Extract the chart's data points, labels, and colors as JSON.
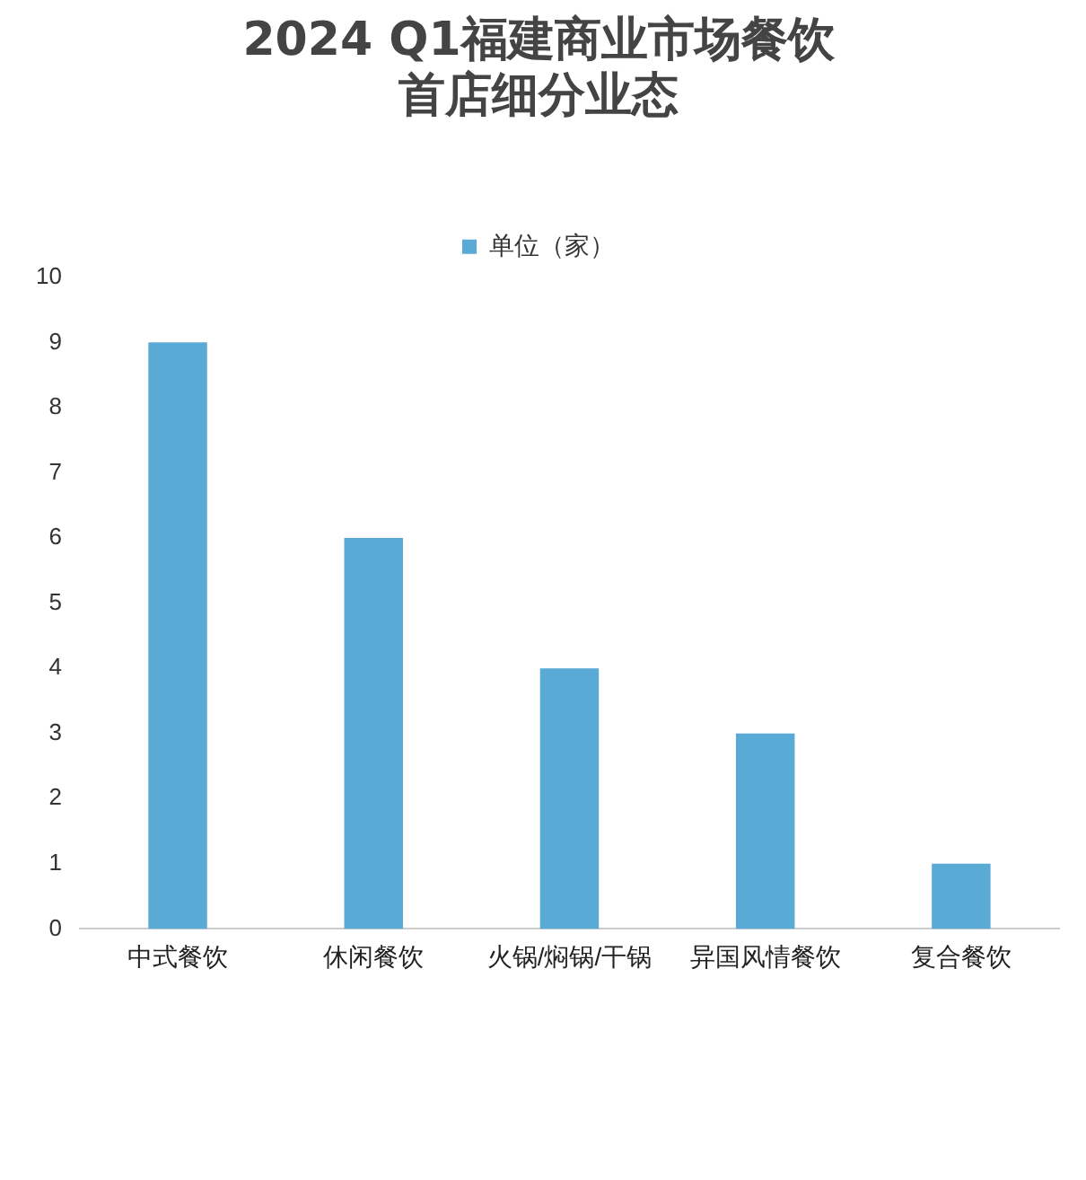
{
  "chart_data": {
    "type": "bar",
    "title": "2024 Q1福建商业市场餐饮首店细分业态",
    "categories": [
      "中式餐饮",
      "休闲餐饮",
      "火锅/焖锅/干锅",
      "异国风情餐饮",
      "复合餐饮"
    ],
    "series": [
      {
        "name": "单位（家）",
        "color": "#5aaad6",
        "values": [
          9,
          6,
          4,
          3,
          1
        ]
      }
    ],
    "ylim": [
      0,
      10
    ],
    "yticks": [
      0,
      1,
      2,
      3,
      4,
      5,
      6,
      7,
      8,
      9,
      10
    ],
    "grid": false,
    "legend": "top"
  }
}
